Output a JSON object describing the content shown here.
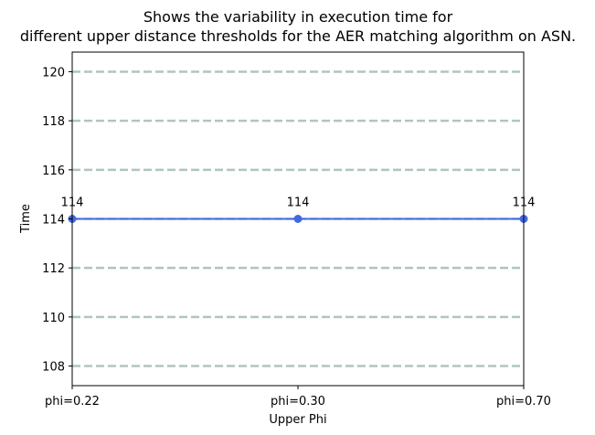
{
  "chart_data": {
    "type": "line",
    "title_lines": [
      "Shows the variability in execution time for",
      "different upper distance thresholds for the AER matching algorithm on ASN."
    ],
    "xlabel": "Upper Phi",
    "ylabel": "Time",
    "categories": [
      "phi=0.22",
      "phi=0.30",
      "phi=0.70"
    ],
    "series": [
      {
        "values": [
          114,
          114,
          114
        ]
      }
    ],
    "data_labels": [
      "114",
      "114",
      "114"
    ],
    "ylim": [
      107.2,
      120.8
    ],
    "yticks": [
      108,
      110,
      112,
      114,
      116,
      118,
      120
    ],
    "ytick_labels": [
      "108",
      "110",
      "112",
      "114",
      "116",
      "118",
      "120"
    ],
    "grid": "horizontal dashed",
    "legend": "none",
    "colors": {
      "line": "#4169e1",
      "grid": "#b0c4c4",
      "axes": "#000000"
    }
  }
}
